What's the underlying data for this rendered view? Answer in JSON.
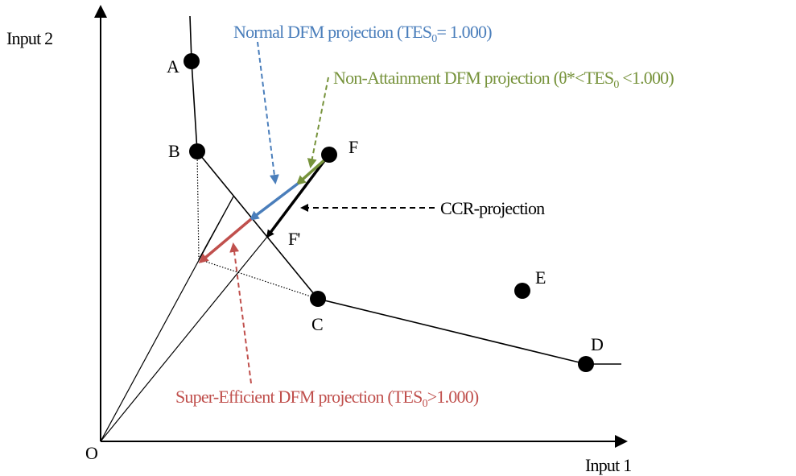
{
  "axes": {
    "y_label": "Input 2",
    "x_label": "Input 1",
    "origin": "O"
  },
  "points": {
    "A": "A",
    "B": "B",
    "C": "C",
    "D": "D",
    "E": "E",
    "F": "F",
    "F_proj": "F'"
  },
  "annotations": {
    "normal": {
      "text": "Normal DFM projection (TES",
      "sub": "0",
      "tail": "= 1.000)"
    },
    "non_attainment": {
      "text": "Non-Attainment DFM projection (θ*<TES",
      "sub": "0",
      "tail": " <1.000)"
    },
    "ccr": {
      "text": "CCR-projection"
    },
    "super": {
      "text": "Super-Efficient DFM projection (TES",
      "sub": "0",
      "tail": ">1.000)"
    }
  }
}
